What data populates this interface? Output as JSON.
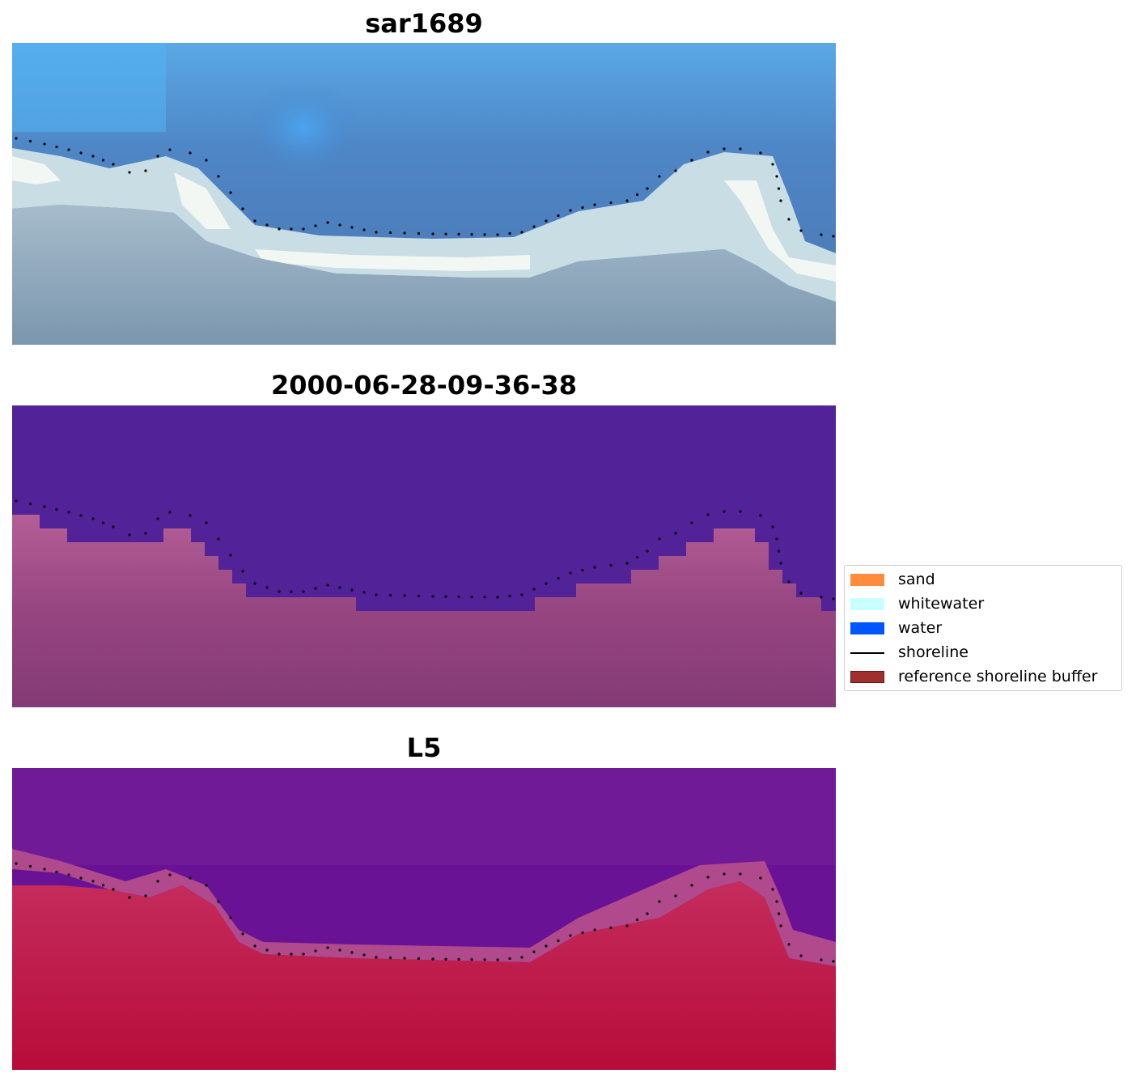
{
  "panels": [
    {
      "title": "sar1689",
      "kind": "rgb"
    },
    {
      "title": "2000-06-28-09-36-38",
      "kind": "classified"
    },
    {
      "title": "L5",
      "kind": "index"
    }
  ],
  "legend": {
    "items": [
      {
        "label": "sand",
        "color": "#ff8c3c"
      },
      {
        "label": "whitewater",
        "color": "#c8ffff"
      },
      {
        "label": "water",
        "color": "#0055ff"
      },
      {
        "label": "shoreline",
        "color": "#000000"
      },
      {
        "label": "reference shoreline buffer",
        "color": "#a0302e"
      }
    ]
  },
  "colors": {
    "classified_water": "#522398",
    "classified_land": "#9a4a86",
    "index_water": "#6a1296",
    "index_land": "#c0184a",
    "rgb_water": "#4a7fc0",
    "rgb_foam": "#e8f2f2",
    "rgb_land": "#7f9db5"
  }
}
